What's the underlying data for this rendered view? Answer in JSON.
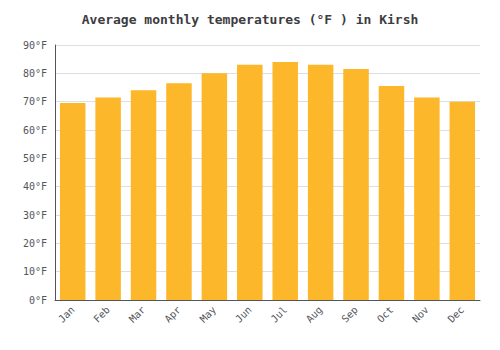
{
  "chart_data": {
    "type": "bar",
    "title": "Average monthly temperatures (°F ) in Kirsh",
    "categories": [
      "Jan",
      "Feb",
      "Mar",
      "Apr",
      "May",
      "Jun",
      "Jul",
      "Aug",
      "Sep",
      "Oct",
      "Nov",
      "Dec"
    ],
    "values": [
      69.5,
      71.5,
      74,
      76.5,
      80,
      83,
      84,
      83,
      81.5,
      75.5,
      71.5,
      70
    ],
    "color": "#FDB72A",
    "ylim": [
      0,
      90
    ],
    "yticks": [
      {
        "value": 0,
        "label": "0°F"
      },
      {
        "value": 10,
        "label": "10°F"
      },
      {
        "value": 20,
        "label": "20°F"
      },
      {
        "value": 30,
        "label": "30°F"
      },
      {
        "value": 40,
        "label": "40°F"
      },
      {
        "value": 50,
        "label": "50°F"
      },
      {
        "value": 60,
        "label": "60°F"
      },
      {
        "value": 70,
        "label": "70°F"
      },
      {
        "value": 80,
        "label": "80°F"
      },
      {
        "value": 90,
        "label": "90°F"
      }
    ],
    "grid": true
  }
}
